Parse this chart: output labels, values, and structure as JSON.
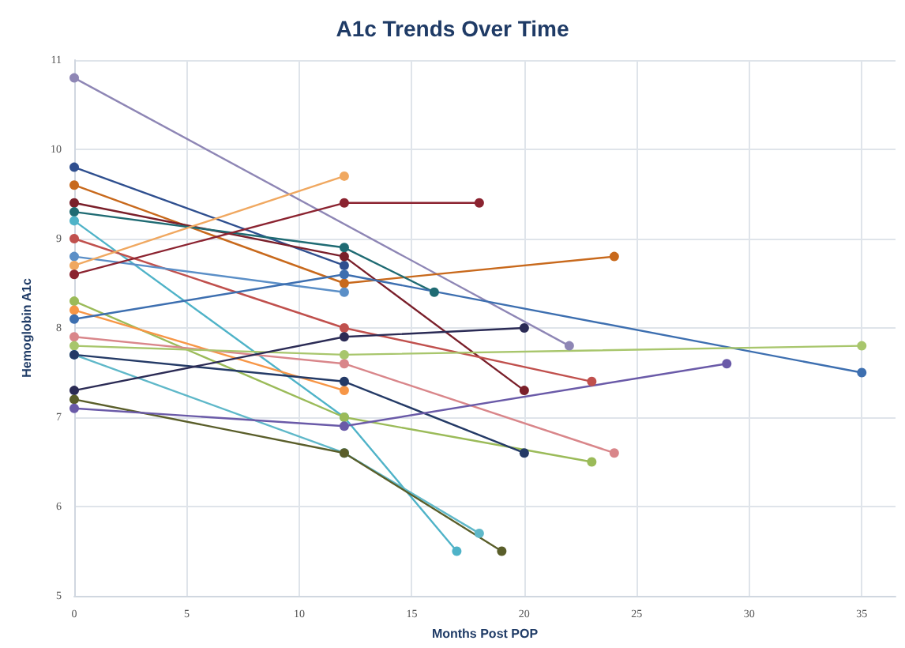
{
  "chart_data": {
    "type": "line",
    "title": "A1c Trends Over Time",
    "xlabel": "Months Post POP",
    "ylabel": "Hemoglobin A1c",
    "xlim": [
      0,
      36.5
    ],
    "xticks": [
      0,
      5,
      10,
      15,
      20,
      25,
      30,
      35
    ],
    "ylim": [
      5,
      11
    ],
    "yticks": [
      5,
      6,
      7,
      8,
      9,
      10,
      11
    ],
    "grid": true,
    "marker": "circle",
    "line_style": "solid",
    "series": [
      {
        "color": "#8e86b5",
        "x": [
          0,
          22
        ],
        "values": [
          10.8,
          7.8
        ]
      },
      {
        "color": "#2f4f8f",
        "x": [
          0,
          12
        ],
        "values": [
          9.8,
          8.7
        ]
      },
      {
        "color": "#c8691c",
        "x": [
          0,
          12,
          24
        ],
        "values": [
          9.6,
          8.5,
          8.8
        ]
      },
      {
        "color": "#7a1f2a",
        "x": [
          0,
          12,
          20
        ],
        "values": [
          9.4,
          8.8,
          7.3
        ]
      },
      {
        "color": "#1f6b73",
        "x": [
          0,
          12,
          16
        ],
        "values": [
          9.3,
          8.9,
          8.4
        ]
      },
      {
        "color": "#4fb3c8",
        "x": [
          0,
          12,
          17
        ],
        "values": [
          9.2,
          7.0,
          5.5
        ]
      },
      {
        "color": "#c0504d",
        "x": [
          0,
          12,
          23
        ],
        "values": [
          9.0,
          8.0,
          7.4
        ]
      },
      {
        "color": "#5b8fc7",
        "x": [
          0,
          12
        ],
        "values": [
          8.8,
          8.4
        ]
      },
      {
        "color": "#f0a860",
        "x": [
          0,
          12
        ],
        "values": [
          8.7,
          9.7
        ]
      },
      {
        "color": "#8b2330",
        "x": [
          0,
          12,
          18
        ],
        "values": [
          8.6,
          9.4,
          9.4
        ]
      },
      {
        "color": "#9bbb59",
        "x": [
          0,
          12,
          23
        ],
        "values": [
          8.3,
          7.0,
          6.5
        ]
      },
      {
        "color": "#f79646",
        "x": [
          0,
          12
        ],
        "values": [
          8.2,
          7.3
        ]
      },
      {
        "color": "#3d6fb0",
        "x": [
          0,
          12,
          35
        ],
        "values": [
          8.1,
          8.6,
          7.5
        ]
      },
      {
        "color": "#d9868a",
        "x": [
          0,
          12,
          24
        ],
        "values": [
          7.9,
          7.6,
          6.6
        ]
      },
      {
        "color": "#a8c66c",
        "x": [
          0,
          12,
          35
        ],
        "values": [
          7.8,
          7.7,
          7.8
        ]
      },
      {
        "color": "#5fb8c9",
        "x": [
          0,
          12,
          18
        ],
        "values": [
          7.7,
          6.6,
          5.7
        ]
      },
      {
        "color": "#243a66",
        "x": [
          0,
          12,
          20
        ],
        "values": [
          7.7,
          7.4,
          6.6
        ]
      },
      {
        "color": "#2b2b55",
        "x": [
          0,
          12,
          20
        ],
        "values": [
          7.3,
          7.9,
          8.0
        ]
      },
      {
        "color": "#5a5e2a",
        "x": [
          0,
          12,
          19
        ],
        "values": [
          7.2,
          6.6,
          5.5
        ]
      },
      {
        "color": "#6a5aa8",
        "x": [
          0,
          12,
          29
        ],
        "values": [
          7.1,
          6.9,
          7.6
        ]
      }
    ]
  }
}
